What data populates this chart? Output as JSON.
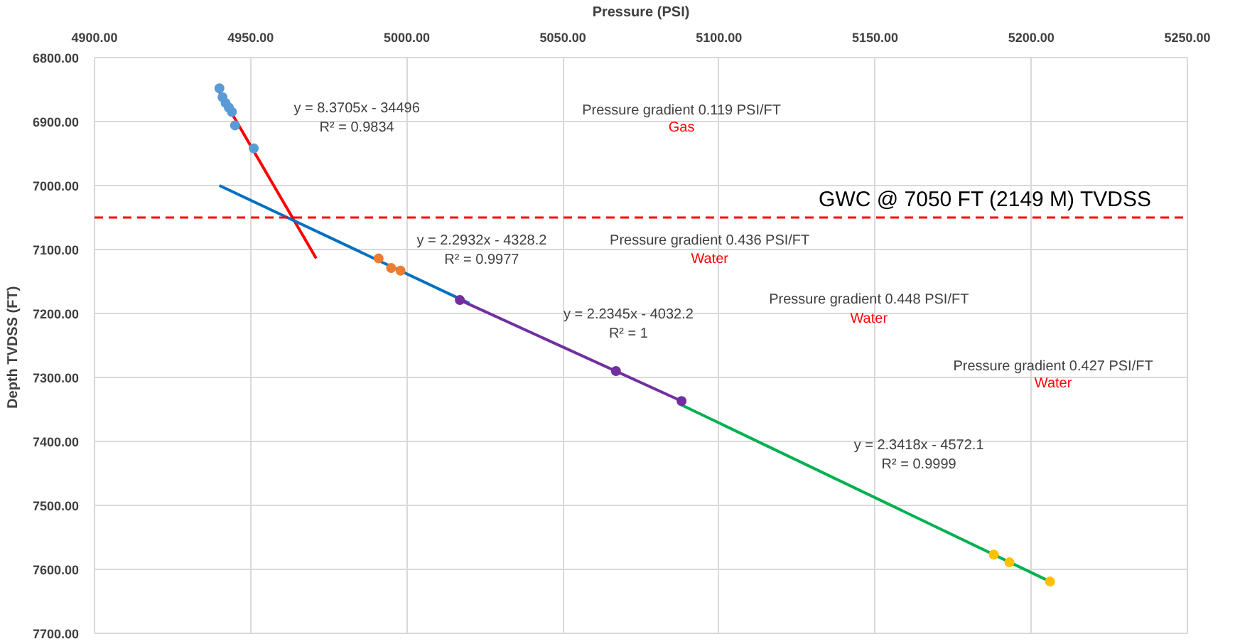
{
  "chart_data": {
    "type": "scatter",
    "xlabel": "Pressure (PSI)",
    "ylabel": "Depth TVDSS  (FT)",
    "xlim": [
      4900,
      5250
    ],
    "ylim": [
      7700,
      6800
    ],
    "xticks": [
      {
        "value": 4900,
        "label": "4900.00"
      },
      {
        "value": 4950,
        "label": "4950.00"
      },
      {
        "value": 5000,
        "label": "5000.00"
      },
      {
        "value": 5050,
        "label": "5050.00"
      },
      {
        "value": 5100,
        "label": "5100.00"
      },
      {
        "value": 5150,
        "label": "5150.00"
      },
      {
        "value": 5200,
        "label": "5200.00"
      },
      {
        "value": 5250,
        "label": "5250.00"
      }
    ],
    "yticks": [
      {
        "value": 6800,
        "label": "6800.00"
      },
      {
        "value": 6900,
        "label": "6900.00"
      },
      {
        "value": 7000,
        "label": "7000.00"
      },
      {
        "value": 7100,
        "label": "7100.00"
      },
      {
        "value": 7200,
        "label": "7200.00"
      },
      {
        "value": 7300,
        "label": "7300.00"
      },
      {
        "value": 7400,
        "label": "7400.00"
      },
      {
        "value": 7500,
        "label": "7500.00"
      },
      {
        "value": 7600,
        "label": "7600.00"
      },
      {
        "value": 7700,
        "label": "7700.00"
      }
    ],
    "grid": true,
    "series": [
      {
        "type": "line",
        "color": "#ff0000",
        "x": [
          4940,
          4971
        ],
        "values": [
          6854,
          7114
        ]
      },
      {
        "type": "line",
        "color": "#0070c0",
        "x": [
          4940,
          5020
        ],
        "values": [
          7000,
          7184
        ]
      },
      {
        "type": "line",
        "color": "#7030a0",
        "x": [
          5017,
          5088
        ],
        "values": [
          7179,
          7337
        ]
      },
      {
        "type": "line",
        "color": "#00b050",
        "x": [
          5088,
          5206
        ],
        "values": [
          7343,
          7619
        ]
      },
      {
        "color": "#5b9bd5",
        "x": [
          4940,
          4941,
          4942,
          4943,
          4944,
          4945,
          4951
        ],
        "values": [
          6848,
          6862,
          6871,
          6878,
          6885,
          6906,
          6942
        ]
      },
      {
        "color": "#ed7d31",
        "x": [
          4991,
          4995,
          4998
        ],
        "values": [
          7114,
          7129,
          7133
        ]
      },
      {
        "color": "#7030a0",
        "x": [
          5017,
          5067,
          5088
        ],
        "values": [
          7179,
          7290,
          7337
        ]
      },
      {
        "color": "#ffc000",
        "x": [
          5188,
          5193,
          5206
        ],
        "values": [
          7577,
          7589,
          7619
        ]
      }
    ],
    "ref_lines": [
      {
        "axis": "y",
        "value": 7050,
        "label": "GWC @ 7050 FT (2149 M) TVDSS",
        "color": "#ff0000",
        "line_style": "dashed"
      }
    ],
    "annotations": [
      "y = 8.3705x - 34496",
      "R² = 0.9834",
      "Pressure gradient 0.119 PSI/FT",
      "Gas",
      "y = 2.2932x - 4328.2",
      "R² = 0.9977",
      "Pressure gradient 0.436 PSI/FT",
      "Water",
      "Pressure gradient 0.448 PSI/FT",
      "Water",
      "y = 2.2345x - 4032.2",
      "R² = 1",
      "Pressure gradient 0.427 PSI/FT",
      "Water",
      "y = 2.3418x - 4572.1",
      "R² = 0.9999"
    ]
  }
}
